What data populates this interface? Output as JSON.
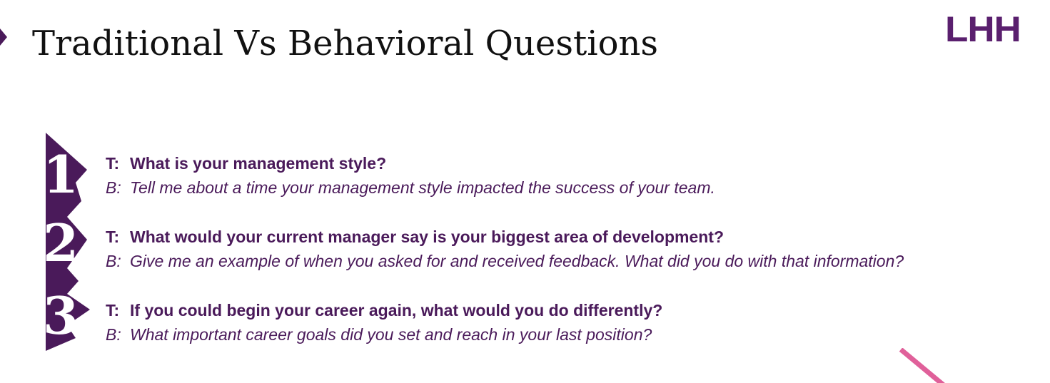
{
  "slide": {
    "title": "Traditional Vs Behavioral Questions",
    "logo_text": "LHH",
    "colors": {
      "accent": "#4a1a5a",
      "logo": "#5a1f6e",
      "pink_accent": "#e0609a",
      "title_text": "#111111",
      "background": "#ffffff"
    }
  },
  "questions": [
    {
      "number": "1",
      "t_prefix": "T:",
      "traditional": "What is your management style?",
      "b_prefix": "B:",
      "behavioral": "Tell me about a time your management style impacted the success of your team."
    },
    {
      "number": "2",
      "t_prefix": "T:",
      "traditional": "What would your current manager say is your biggest area of development?",
      "b_prefix": "B:",
      "behavioral": "Give me an example of when you asked for and received feedback.  What did you do with that information?"
    },
    {
      "number": "3",
      "t_prefix": "T:",
      "traditional": "If you could begin your career again, what would you do differently?",
      "b_prefix": "B:",
      "behavioral": "What important career goals did you set and reach in your last position?"
    }
  ]
}
